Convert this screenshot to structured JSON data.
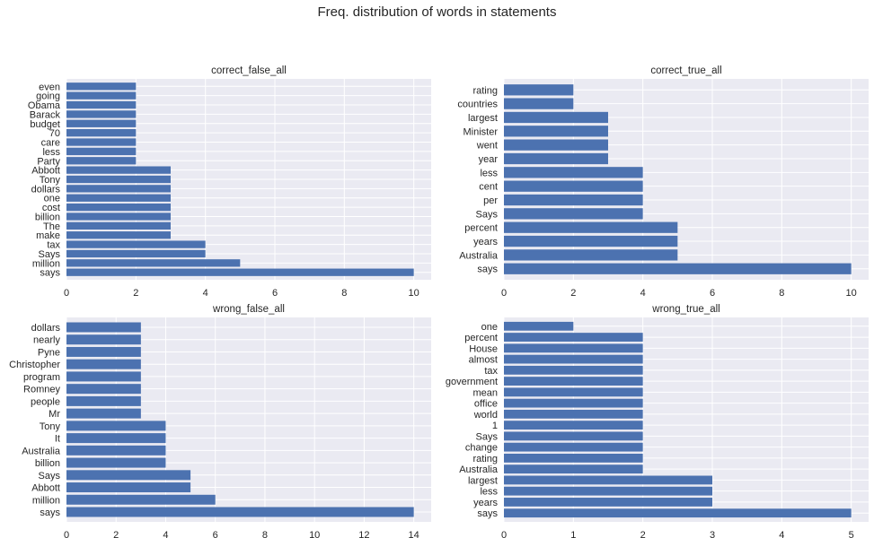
{
  "suptitle": "Freq. distribution of words in statements",
  "style": {
    "bar_color": "#4c72b0",
    "axes_bg": "#eaeaf2",
    "grid_color": "#ffffff"
  },
  "chart_data": [
    {
      "type": "bar",
      "orientation": "horizontal",
      "title": "correct_false_all",
      "xlabel": "",
      "ylabel": "",
      "xlim": [
        0,
        10.5
      ],
      "xticks": [
        0,
        2,
        4,
        6,
        8,
        10
      ],
      "grid": true,
      "categories": [
        "says",
        "million",
        "Says",
        "tax",
        "make",
        "The",
        "billion",
        "cost",
        "one",
        "dollars",
        "Tony",
        "Abbott",
        "Party",
        "less",
        "care",
        "70",
        "budget",
        "Barack",
        "Obama",
        "going",
        "even"
      ],
      "values": [
        10,
        5,
        4,
        4,
        3,
        3,
        3,
        3,
        3,
        3,
        3,
        3,
        2,
        2,
        2,
        2,
        2,
        2,
        2,
        2,
        2
      ]
    },
    {
      "type": "bar",
      "orientation": "horizontal",
      "title": "correct_true_all",
      "xlabel": "",
      "ylabel": "",
      "xlim": [
        0,
        10.5
      ],
      "xticks": [
        0,
        2,
        4,
        6,
        8,
        10
      ],
      "grid": true,
      "categories": [
        "says",
        "Australia",
        "years",
        "percent",
        "Says",
        "per",
        "cent",
        "less",
        "year",
        "went",
        "Minister",
        "largest",
        "countries",
        "rating"
      ],
      "values": [
        10,
        5,
        5,
        5,
        4,
        4,
        4,
        4,
        3,
        3,
        3,
        3,
        2,
        2
      ]
    },
    {
      "type": "bar",
      "orientation": "horizontal",
      "title": "wrong_false_all",
      "xlabel": "",
      "ylabel": "",
      "xlim": [
        0,
        14.7
      ],
      "xticks": [
        0,
        2,
        4,
        6,
        8,
        10,
        12,
        14
      ],
      "grid": true,
      "categories": [
        "says",
        "million",
        "Abbott",
        "Says",
        "billion",
        "Australia",
        "It",
        "Tony",
        "Mr",
        "people",
        "Romney",
        "program",
        "Christopher",
        "Pyne",
        "nearly",
        "dollars"
      ],
      "values": [
        14,
        6,
        5,
        5,
        4,
        4,
        4,
        4,
        3,
        3,
        3,
        3,
        3,
        3,
        3,
        3
      ]
    },
    {
      "type": "bar",
      "orientation": "horizontal",
      "title": "wrong_true_all",
      "xlabel": "",
      "ylabel": "",
      "xlim": [
        0,
        5.25
      ],
      "xticks": [
        0,
        1,
        2,
        3,
        4,
        5
      ],
      "grid": true,
      "categories": [
        "says",
        "years",
        "less",
        "largest",
        "Australia",
        "rating",
        "change",
        "Says",
        "1",
        "world",
        "office",
        "mean",
        "government",
        "tax",
        "almost",
        "House",
        "percent",
        "one"
      ],
      "values": [
        5,
        3,
        3,
        3,
        2,
        2,
        2,
        2,
        2,
        2,
        2,
        2,
        2,
        2,
        2,
        2,
        2,
        1
      ]
    }
  ]
}
